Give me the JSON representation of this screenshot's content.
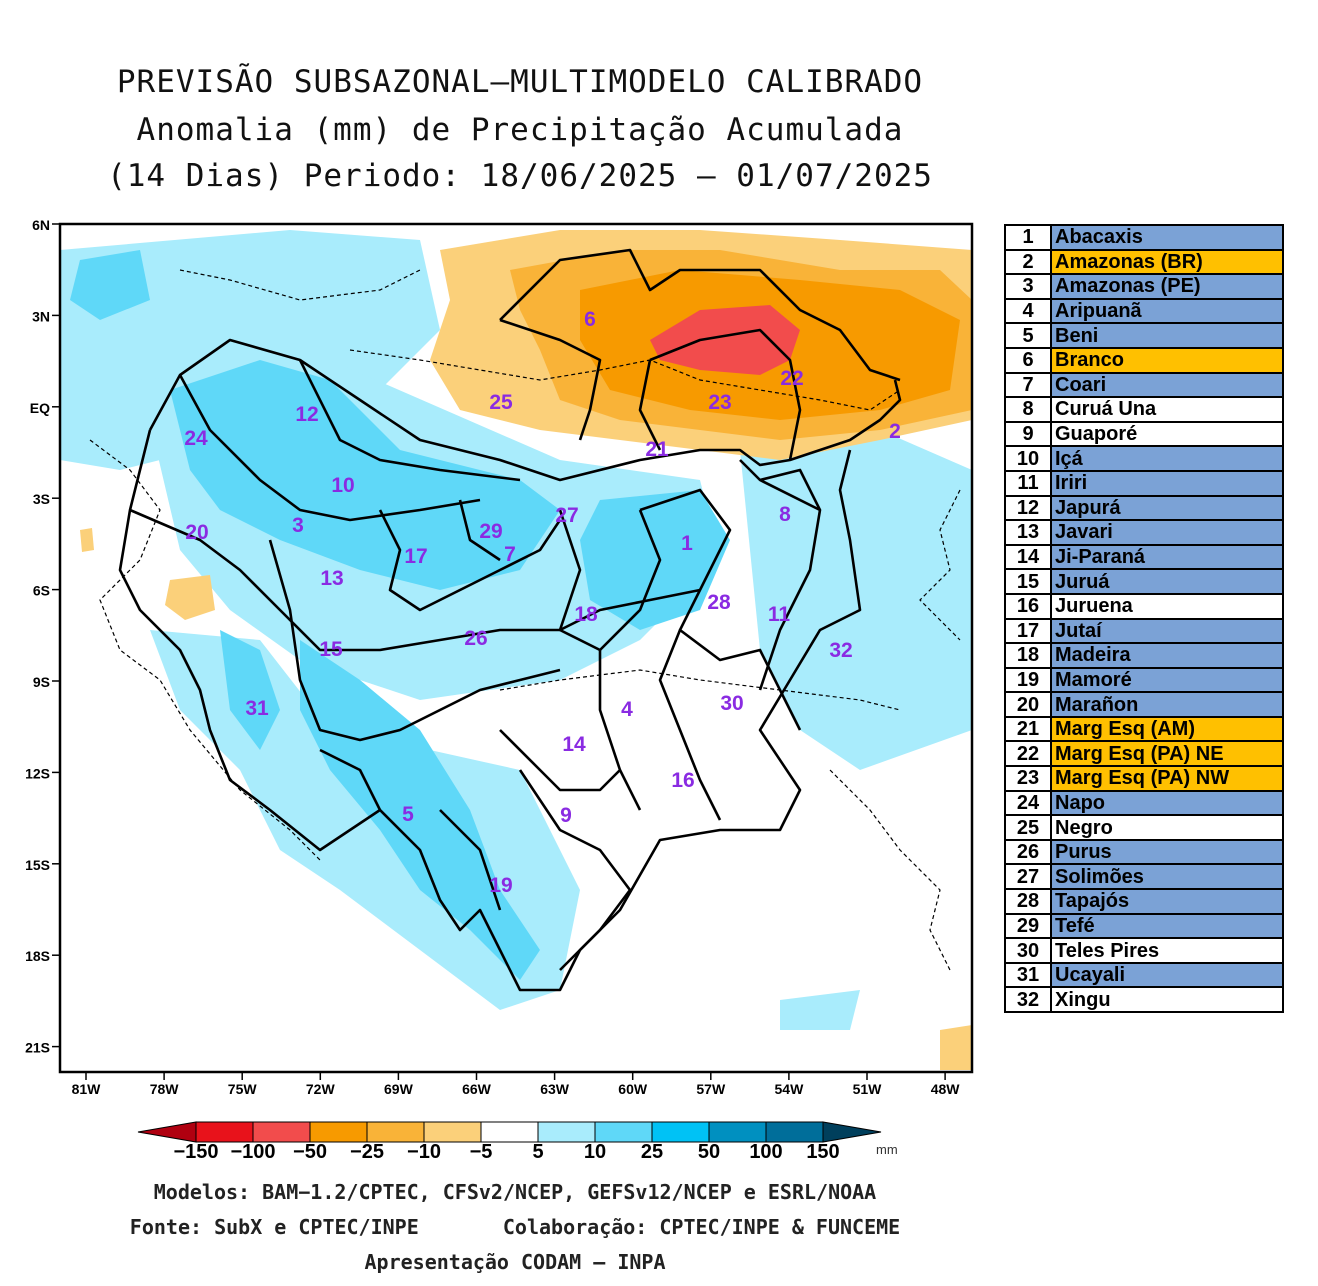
{
  "title": {
    "line1": "PREVISÃO SUBSAZONAL–MULTIMODELO CALIBRADO",
    "line2": "Anomalia (mm) de Precipitação Acumulada",
    "line3": "(14 Dias) Periodo: 18/06/2025 – 01/07/2025"
  },
  "axes": {
    "lat_labels": [
      "6N",
      "3N",
      "EQ",
      "3S",
      "6S",
      "9S",
      "12S",
      "15S",
      "18S",
      "21S"
    ],
    "lon_labels": [
      "81W",
      "78W",
      "75W",
      "72W",
      "69W",
      "66W",
      "63W",
      "60W",
      "57W",
      "54W",
      "51W",
      "48W"
    ]
  },
  "basin_labels": [
    "1",
    "2",
    "3",
    "4",
    "5",
    "6",
    "7",
    "8",
    "9",
    "10",
    "11",
    "12",
    "13",
    "14",
    "15",
    "16",
    "17",
    "18",
    "19",
    "20",
    "21",
    "22",
    "23",
    "24",
    "25",
    "26",
    "27",
    "28",
    "29",
    "30",
    "31",
    "32"
  ],
  "legend": [
    {
      "num": "1",
      "name": "Abacaxis",
      "color": "#7ba2d6"
    },
    {
      "num": "2",
      "name": "Amazonas (BR)",
      "color": "#ffc000"
    },
    {
      "num": "3",
      "name": "Amazonas (PE)",
      "color": "#7ba2d6"
    },
    {
      "num": "4",
      "name": "Aripuanã",
      "color": "#7ba2d6"
    },
    {
      "num": "5",
      "name": "Beni",
      "color": "#7ba2d6"
    },
    {
      "num": "6",
      "name": "Branco",
      "color": "#ffc000"
    },
    {
      "num": "7",
      "name": "Coari",
      "color": "#7ba2d6"
    },
    {
      "num": "8",
      "name": "Curuá Una",
      "color": "#ffffff"
    },
    {
      "num": "9",
      "name": "Guaporé",
      "color": "#ffffff"
    },
    {
      "num": "10",
      "name": "Içá",
      "color": "#7ba2d6"
    },
    {
      "num": "11",
      "name": "Iriri",
      "color": "#7ba2d6"
    },
    {
      "num": "12",
      "name": "Japurá",
      "color": "#7ba2d6"
    },
    {
      "num": "13",
      "name": "Javari",
      "color": "#7ba2d6"
    },
    {
      "num": "14",
      "name": "Ji-Paraná",
      "color": "#7ba2d6"
    },
    {
      "num": "15",
      "name": "Juruá",
      "color": "#7ba2d6"
    },
    {
      "num": "16",
      "name": "Juruena",
      "color": "#ffffff"
    },
    {
      "num": "17",
      "name": "Jutaí",
      "color": "#7ba2d6"
    },
    {
      "num": "18",
      "name": "Madeira",
      "color": "#7ba2d6"
    },
    {
      "num": "19",
      "name": "Mamoré",
      "color": "#7ba2d6"
    },
    {
      "num": "20",
      "name": "Marañon",
      "color": "#7ba2d6"
    },
    {
      "num": "21",
      "name": "Marg Esq (AM)",
      "color": "#ffc000"
    },
    {
      "num": "22",
      "name": "Marg Esq (PA) NE",
      "color": "#ffc000"
    },
    {
      "num": "23",
      "name": "Marg Esq (PA) NW",
      "color": "#ffc000"
    },
    {
      "num": "24",
      "name": "Napo",
      "color": "#7ba2d6"
    },
    {
      "num": "25",
      "name": "Negro",
      "color": "#ffffff"
    },
    {
      "num": "26",
      "name": "Purus",
      "color": "#7ba2d6"
    },
    {
      "num": "27",
      "name": "Solimões",
      "color": "#7ba2d6"
    },
    {
      "num": "28",
      "name": "Tapajós",
      "color": "#7ba2d6"
    },
    {
      "num": "29",
      "name": "Tefé",
      "color": "#7ba2d6"
    },
    {
      "num": "30",
      "name": "Teles Pires",
      "color": "#ffffff"
    },
    {
      "num": "31",
      "name": "Ucayali",
      "color": "#7ba2d6"
    },
    {
      "num": "32",
      "name": "Xingu",
      "color": "#ffffff"
    }
  ],
  "colorbar": {
    "labels": [
      "−150",
      "−100",
      "−50",
      "−25",
      "−10",
      "−5",
      "5",
      "10",
      "25",
      "50",
      "100",
      "150"
    ],
    "unit": "mm",
    "colors": [
      "#e8121b",
      "#f24c4c",
      "#f79a00",
      "#f9b338",
      "#fbd07a",
      "#ffffff",
      "#a9ecfc",
      "#5fd8f8",
      "#00c2f5",
      "#0090c0",
      "#006e9a"
    ],
    "end_left": "#b00010",
    "end_right": "#003f5c"
  },
  "credits": {
    "models": "Modelos: BAM−1.2/CPTEC, CFSv2/NCEP, GEFSv12/NCEP e ESRL/NOAA",
    "source": "Fonte: SubX e CPTEC/INPE",
    "collab": "Colaboração: CPTEC/INPE & FUNCEME",
    "presentation": "Apresentação CODAM – INPA"
  }
}
